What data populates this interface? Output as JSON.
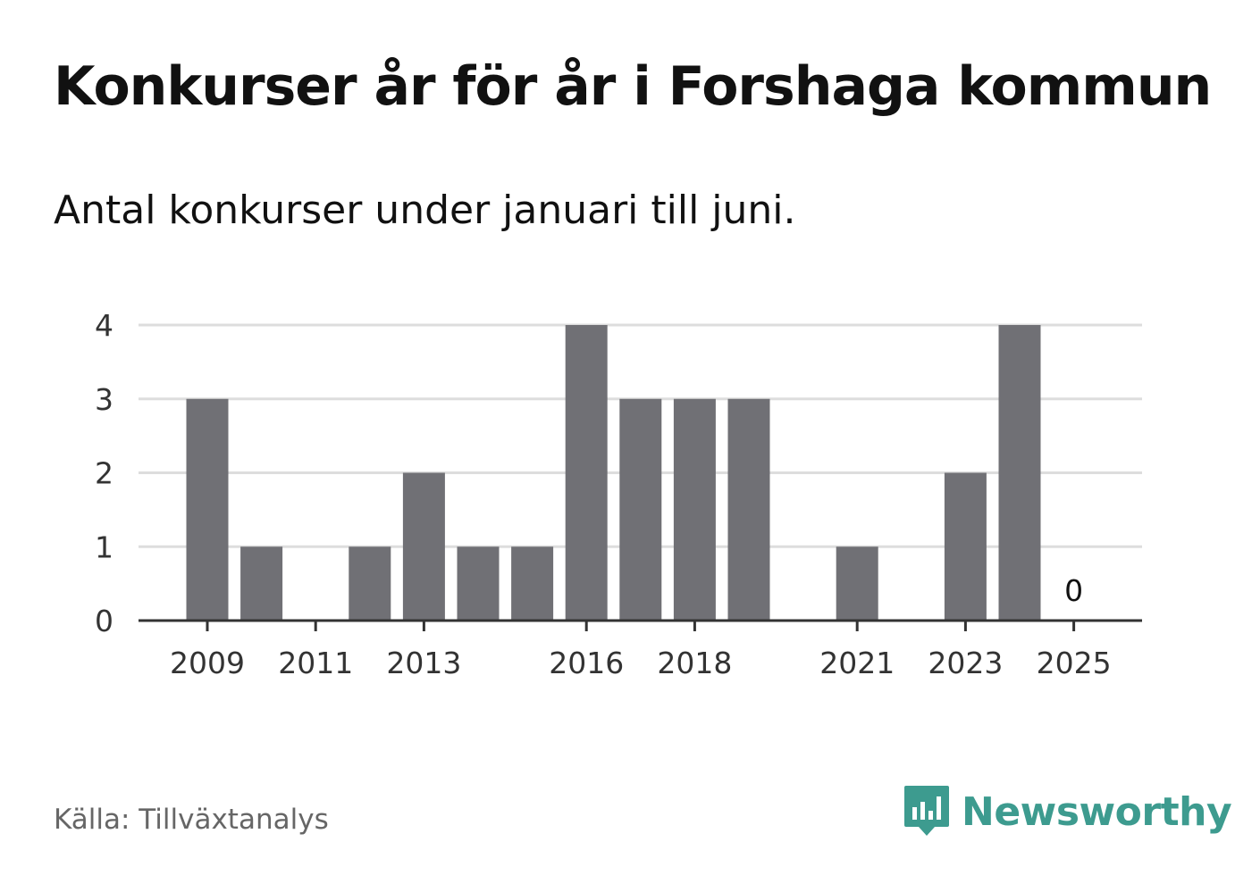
{
  "header": {
    "title": "Konkurser år för år i Forshaga kommun",
    "subtitle": "Antal konkurser under januari till juni."
  },
  "footer": {
    "source": "Källa: Tillväxtanalys",
    "brand": "Newsworthy"
  },
  "colors": {
    "bar": "#707075",
    "grid": "#dddddd",
    "axis": "#333333",
    "brand": "#3d9b8f"
  },
  "icons": {
    "brand_logo": "newsworthy-logo-icon"
  },
  "chart_data": {
    "type": "bar",
    "categories": [
      "2009",
      "2010",
      "2011",
      "2012",
      "2013",
      "2014",
      "2015",
      "2016",
      "2017",
      "2018",
      "2019",
      "2020",
      "2021",
      "2022",
      "2023",
      "2024",
      "2025"
    ],
    "values": [
      3,
      1,
      0,
      1,
      2,
      1,
      1,
      4,
      3,
      3,
      3,
      0,
      1,
      0,
      2,
      4,
      0
    ],
    "x_tick_labels": [
      "2009",
      "2011",
      "2013",
      "2016",
      "2018",
      "2021",
      "2023",
      "2025"
    ],
    "y_ticks": [
      "0",
      "1",
      "2",
      "3",
      "4"
    ],
    "ylim": [
      0,
      4
    ],
    "grid": true,
    "annotations": [
      {
        "category": "2025",
        "text": "0"
      }
    ],
    "xlabel": "",
    "ylabel": ""
  }
}
